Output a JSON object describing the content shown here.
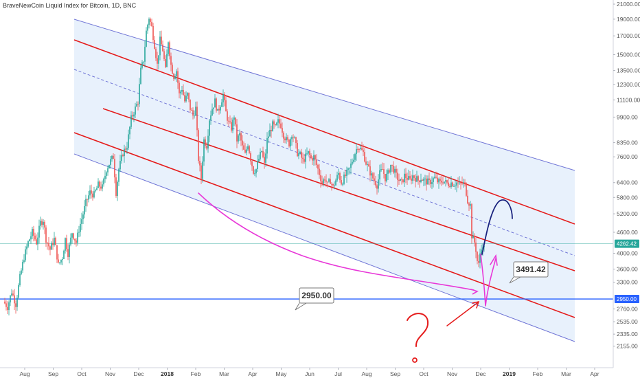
{
  "header": {
    "title": "BraveNewCoin Liquid Index for Bitcoin, 1D, BNC"
  },
  "chart_data": {
    "type": "candlestick",
    "y_scale": "log",
    "ylim": [
      2000,
      21000
    ],
    "y_ticks": [
      "21000.00",
      "19000.00",
      "17000.00",
      "15000.00",
      "13500.00",
      "12300.00",
      "11100.00",
      "9900.00",
      "8350.00",
      "7600.00",
      "6400.00",
      "5800.00",
      "5200.00",
      "4600.00",
      "4000.00",
      "3600.00",
      "3300.00",
      "2760.00",
      "2535.00",
      "2335.00",
      "2155.00"
    ],
    "x_ticks": [
      {
        "label": "Aug"
      },
      {
        "label": "Sep"
      },
      {
        "label": "Oct"
      },
      {
        "label": "Nov"
      },
      {
        "label": "Dec"
      },
      {
        "label": "2018",
        "bold": true
      },
      {
        "label": "Feb"
      },
      {
        "label": "Mar"
      },
      {
        "label": "Apr"
      },
      {
        "label": "May"
      },
      {
        "label": "Jun"
      },
      {
        "label": "Jul"
      },
      {
        "label": "Aug"
      },
      {
        "label": "Sep"
      },
      {
        "label": "Oct"
      },
      {
        "label": "Nov"
      },
      {
        "label": "Dec"
      },
      {
        "label": "2019",
        "bold": true
      },
      {
        "label": "Feb"
      },
      {
        "label": "Mar"
      },
      {
        "label": "Apr"
      }
    ],
    "price_path": [
      [
        0,
        2900
      ],
      [
        6,
        2800
      ],
      [
        12,
        3100
      ],
      [
        18,
        2850
      ],
      [
        24,
        3400
      ],
      [
        30,
        3900
      ],
      [
        36,
        4300
      ],
      [
        42,
        4600
      ],
      [
        48,
        4300
      ],
      [
        54,
        4900
      ],
      [
        58,
        5000
      ],
      [
        62,
        4400
      ],
      [
        68,
        4100
      ],
      [
        74,
        4400
      ],
      [
        80,
        3700
      ],
      [
        86,
        3900
      ],
      [
        90,
        4400
      ],
      [
        94,
        4000
      ],
      [
        100,
        4600
      ],
      [
        106,
        4300
      ],
      [
        110,
        4700
      ],
      [
        116,
        5200
      ],
      [
        120,
        5600
      ],
      [
        126,
        6000
      ],
      [
        132,
        5900
      ],
      [
        138,
        6300
      ],
      [
        144,
        6200
      ],
      [
        150,
        7000
      ],
      [
        156,
        7400
      ],
      [
        160,
        7600
      ],
      [
        164,
        6000
      ],
      [
        168,
        7000
      ],
      [
        174,
        7800
      ],
      [
        180,
        8200
      ],
      [
        186,
        9800
      ],
      [
        192,
        10500
      ],
      [
        196,
        11000
      ],
      [
        200,
        13500
      ],
      [
        204,
        14500
      ],
      [
        208,
        17500
      ],
      [
        212,
        19200
      ],
      [
        216,
        18000
      ],
      [
        220,
        16000
      ],
      [
        224,
        14000
      ],
      [
        228,
        16500
      ],
      [
        232,
        15500
      ],
      [
        236,
        13500
      ],
      [
        240,
        16500
      ],
      [
        244,
        14000
      ],
      [
        248,
        13000
      ],
      [
        252,
        13500
      ],
      [
        256,
        11500
      ],
      [
        260,
        12000
      ],
      [
        264,
        11000
      ],
      [
        268,
        11500
      ],
      [
        272,
        10500
      ],
      [
        276,
        10000
      ],
      [
        280,
        10500
      ],
      [
        284,
        7500
      ],
      [
        288,
        6600
      ],
      [
        292,
        8500
      ],
      [
        296,
        8200
      ],
      [
        300,
        9800
      ],
      [
        304,
        10500
      ],
      [
        308,
        11000
      ],
      [
        312,
        10200
      ],
      [
        316,
        10800
      ],
      [
        320,
        11500
      ],
      [
        324,
        10200
      ],
      [
        328,
        9500
      ],
      [
        332,
        9200
      ],
      [
        336,
        10000
      ],
      [
        340,
        8500
      ],
      [
        344,
        8800
      ],
      [
        348,
        8100
      ],
      [
        352,
        7700
      ],
      [
        356,
        8300
      ],
      [
        360,
        7500
      ],
      [
        364,
        6900
      ],
      [
        368,
        7000
      ],
      [
        372,
        7500
      ],
      [
        376,
        7900
      ],
      [
        380,
        7200
      ],
      [
        384,
        8500
      ],
      [
        388,
        9000
      ],
      [
        392,
        9400
      ],
      [
        396,
        9200
      ],
      [
        400,
        9600
      ],
      [
        404,
        9400
      ],
      [
        408,
        8800
      ],
      [
        412,
        8500
      ],
      [
        416,
        8300
      ],
      [
        420,
        8900
      ],
      [
        424,
        8500
      ],
      [
        428,
        7800
      ],
      [
        432,
        7700
      ],
      [
        436,
        7400
      ],
      [
        440,
        7600
      ],
      [
        444,
        7800
      ],
      [
        448,
        7500
      ],
      [
        452,
        7600
      ],
      [
        456,
        7200
      ],
      [
        460,
        6800
      ],
      [
        464,
        6400
      ],
      [
        468,
        6600
      ],
      [
        472,
        6300
      ],
      [
        476,
        6500
      ],
      [
        480,
        6200
      ],
      [
        484,
        6500
      ],
      [
        488,
        6800
      ],
      [
        492,
        6400
      ],
      [
        496,
        6600
      ],
      [
        500,
        6800
      ],
      [
        504,
        7000
      ],
      [
        508,
        7400
      ],
      [
        512,
        7800
      ],
      [
        516,
        8200
      ],
      [
        520,
        8000
      ],
      [
        524,
        7800
      ],
      [
        528,
        7300
      ],
      [
        532,
        7000
      ],
      [
        536,
        6700
      ],
      [
        540,
        6500
      ],
      [
        544,
        6300
      ],
      [
        548,
        6800
      ],
      [
        552,
        7000
      ],
      [
        556,
        6600
      ],
      [
        560,
        6800
      ],
      [
        564,
        7200
      ],
      [
        568,
        7000
      ],
      [
        572,
        6700
      ],
      [
        576,
        6500
      ],
      [
        580,
        6400
      ],
      [
        584,
        6700
      ],
      [
        588,
        6600
      ],
      [
        592,
        6500
      ],
      [
        596,
        6700
      ],
      [
        600,
        6600
      ],
      [
        604,
        6500
      ],
      [
        608,
        6600
      ],
      [
        612,
        6500
      ],
      [
        616,
        6450
      ],
      [
        620,
        6400
      ],
      [
        624,
        6500
      ],
      [
        628,
        6600
      ],
      [
        632,
        6450
      ],
      [
        636,
        6400
      ],
      [
        640,
        6500
      ],
      [
        644,
        6400
      ],
      [
        648,
        6350
      ],
      [
        652,
        6400
      ],
      [
        656,
        6350
      ],
      [
        660,
        6400
      ],
      [
        664,
        6300
      ],
      [
        668,
        6400
      ],
      [
        672,
        6300
      ],
      [
        676,
        5700
      ],
      [
        680,
        5500
      ],
      [
        682,
        4500
      ],
      [
        684,
        4400
      ],
      [
        686,
        4300
      ],
      [
        688,
        4100
      ],
      [
        690,
        3800
      ],
      [
        692,
        3700
      ],
      [
        694,
        4000
      ],
      [
        696,
        4200
      ],
      [
        698,
        4100
      ],
      [
        700,
        4262.42
      ]
    ],
    "last_price": "4262.42",
    "level_line": "2950.00",
    "target_label": "3491.42",
    "annotation": "?",
    "colors": {
      "up": "#26a69a",
      "down": "#ef5350",
      "channel_blue": "#7075d6",
      "channel_fill": "#e4effb",
      "red_line": "#e51c1c",
      "pink": "#e838d8",
      "level_blue": "#2962ff",
      "current_teal": "#26a69a"
    }
  }
}
